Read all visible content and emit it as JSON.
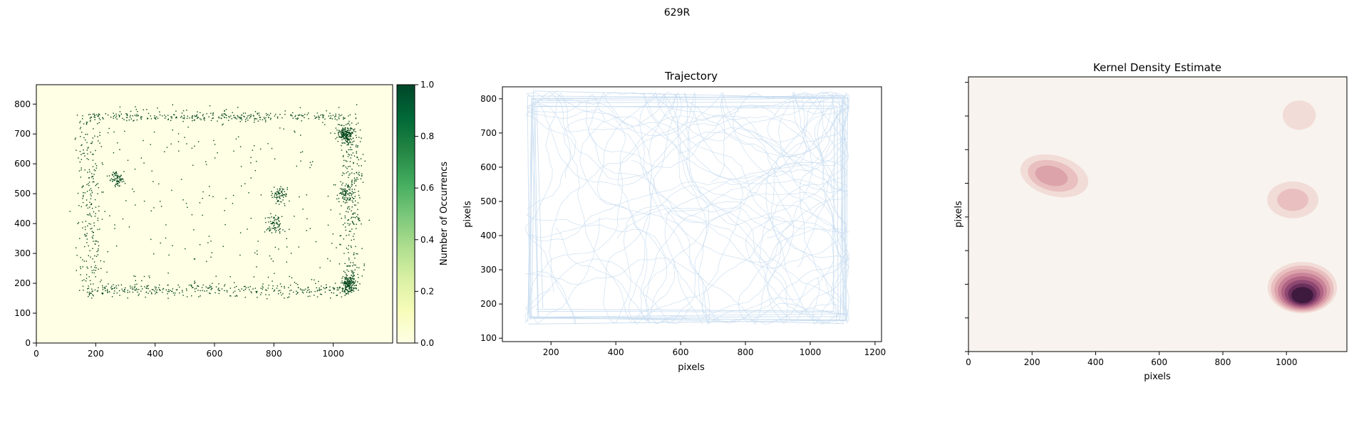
{
  "figure": {
    "suptitle": "629R"
  },
  "chart_data": [
    {
      "type": "heatmap",
      "title": "",
      "xlabel": "",
      "ylabel": "",
      "xlim": [
        0,
        1200
      ],
      "ylim": [
        0,
        865
      ],
      "xticks": [
        0,
        200,
        400,
        600,
        800,
        1000
      ],
      "yticks": [
        0,
        100,
        200,
        300,
        400,
        500,
        600,
        700,
        800
      ],
      "background_color": "#ffffe5",
      "point_color": "#00441b",
      "colorbar": {
        "label": "Number of Occurrencs",
        "range": [
          0,
          1.0
        ],
        "ticks": [
          "0.0",
          "0.2",
          "0.4",
          "0.6",
          "0.8",
          "1.0"
        ],
        "colormap": [
          "#ffffe5",
          "#f7fcb9",
          "#d9f0a3",
          "#addd8e",
          "#78c679",
          "#41ab5d",
          "#238443",
          "#006837",
          "#004529"
        ]
      },
      "occupied_region": {
        "x": [
          105,
          1135
        ],
        "y": [
          130,
          835
        ]
      },
      "clusters": [
        {
          "x": 1040,
          "y": 700
        },
        {
          "x": 1050,
          "y": 200
        },
        {
          "x": 1040,
          "y": 500
        },
        {
          "x": 270,
          "y": 550
        },
        {
          "x": 820,
          "y": 500
        },
        {
          "x": 800,
          "y": 400
        }
      ]
    },
    {
      "type": "line",
      "title": "Trajectory",
      "xlabel": "pixels",
      "ylabel": "pixels",
      "xlim": [
        50,
        1220
      ],
      "ylim": [
        90,
        835
      ],
      "xticks": [
        200,
        400,
        600,
        800,
        1000,
        1200
      ],
      "yticks": [
        100,
        200,
        300,
        400,
        500,
        600,
        700,
        800
      ],
      "line_color": "#c6dbef",
      "arena": {
        "x": [
          120,
          1120
        ],
        "y": [
          140,
          820
        ]
      }
    },
    {
      "type": "heatmap",
      "title": "Kernel Density Estimate",
      "xlabel": "pixels",
      "ylabel": "pixels",
      "xlim": [
        0,
        1190
      ],
      "ylim": [
        0,
        860
      ],
      "xticks": [
        0,
        200,
        400,
        600,
        800,
        1000
      ],
      "yticks_unlabeled": 8,
      "background_color": "#f8f3ee",
      "levels": [
        "#f2dcd7",
        "#e9bfc0",
        "#dca3ab",
        "#c98399",
        "#b06483",
        "#8e4872",
        "#6a2f5c",
        "#3f1a3f"
      ],
      "hotspots": [
        {
          "x": 1050,
          "y": 200,
          "sx": 95,
          "sy": 70,
          "levels": 8
        },
        {
          "x": 270,
          "y": 550,
          "sx": 95,
          "sy": 55,
          "levels": 3
        },
        {
          "x": 1020,
          "y": 475,
          "sx": 70,
          "sy": 50,
          "levels": 2
        },
        {
          "x": 1040,
          "y": 740,
          "sx": 45,
          "sy": 40,
          "levels": 1
        }
      ]
    }
  ]
}
